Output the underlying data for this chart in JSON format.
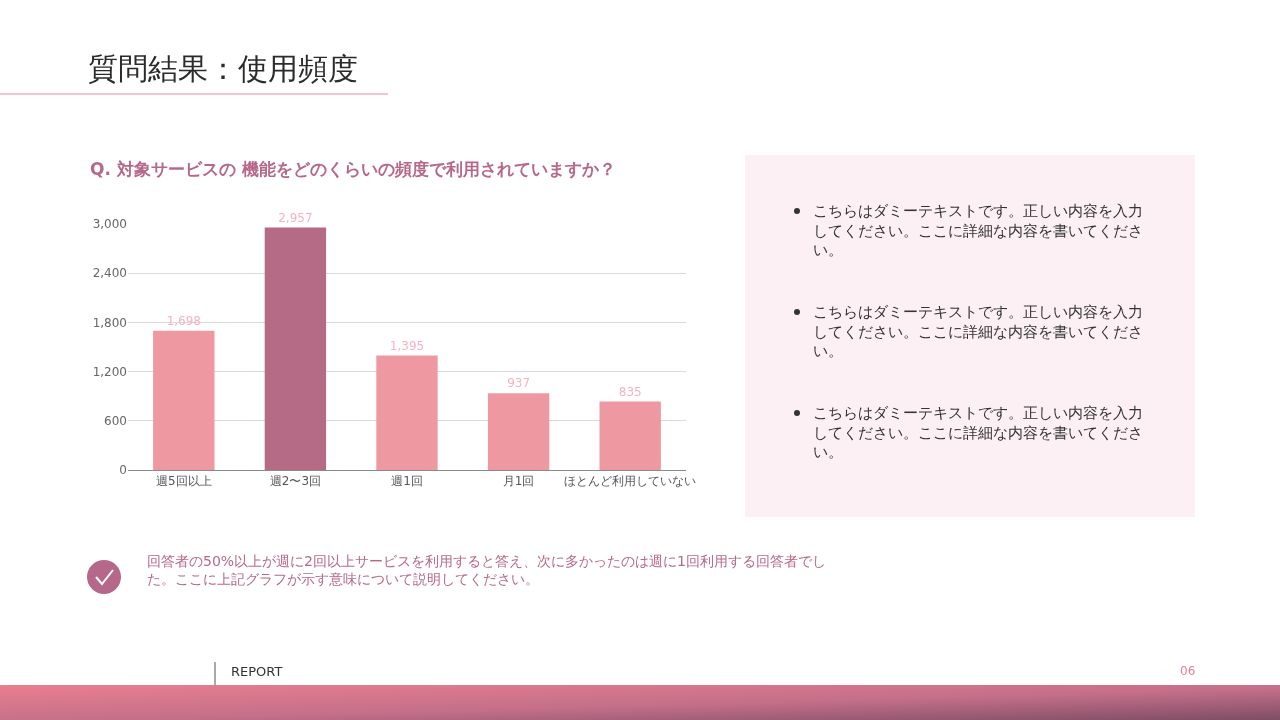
{
  "chart_data": {
    "type": "bar",
    "title": "質問結果：使用頻度",
    "subtitle": "Q. 対象サービスの 機能をどのくらいの頻度で利用されていますか？",
    "categories": [
      "週5回以上",
      "週2〜3回",
      "週1回",
      "月1回",
      "ほとんど利用していない"
    ],
    "values": [
      1698,
      2957,
      1395,
      937,
      835
    ],
    "colors": [
      "#ee99a1",
      "#b56b85",
      "#ee99a1",
      "#ee99a1",
      "#ee99a1"
    ],
    "value_labels": [
      "1,698",
      "2,957",
      "1,395",
      "937",
      "835"
    ],
    "ylim": [
      0,
      3000
    ],
    "yticks": [
      0,
      600,
      {
        "value": 1200,
        "label": "1,200"
      },
      {
        "value": 1800,
        "label": "1,800"
      },
      {
        "value": 2400,
        "label": "2,400"
      },
      {
        "value": 3000,
        "label": "3,000"
      }
    ],
    "grid": "y",
    "annotations": [
      "こちらはダミーテキストです。正しい内容を入力してください。ここに詳細な内容を書いてください。",
      "こちらはダミーテキストです。正しい内容を入力してください。ここに詳細な内容を書いてください。",
      "こちらはダミーテキストです。正しい内容を入力してください。ここに詳細な内容を書いてください。",
      "回答者の50%以上が週に2回以上サービスを利用すると答え、次に多かったのは週に1回利用する回答者でした。ここに上記グラフが示す意味について説明してください。",
      "REPORT",
      "06"
    ]
  }
}
